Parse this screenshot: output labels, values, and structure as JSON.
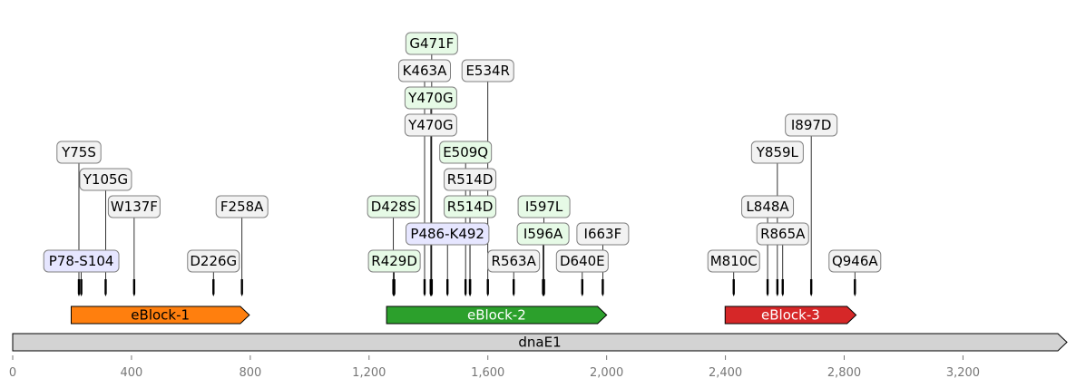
{
  "map": {
    "sequence": {
      "name": "dnaE1",
      "length": 3550
    },
    "axis": {
      "min": 0,
      "max": 3550,
      "ticks": [
        0,
        400,
        800,
        1200,
        1600,
        2000,
        2400,
        2800,
        3200
      ],
      "tick_labels": [
        "0",
        "400",
        "800",
        "1,200",
        "1,600",
        "2,000",
        "2,400",
        "2,800",
        "3,200"
      ]
    },
    "blocks": [
      {
        "name": "eBlock-1",
        "start": 197,
        "end": 797,
        "color": "#ff7f0e",
        "text_color": "#000000"
      },
      {
        "name": "eBlock-2",
        "start": 1259,
        "end": 2000,
        "color": "#2ca02c",
        "text_color": "#ffffff"
      },
      {
        "name": "eBlock-3",
        "start": 2399,
        "end": 2840,
        "color": "#d62728",
        "text_color": "#ffffff"
      }
    ],
    "features": [
      {
        "label": "P78-S104",
        "pos": 231,
        "level": 0,
        "kind": "range"
      },
      {
        "label": "Y75S",
        "pos": 223,
        "level": 4,
        "kind": "gray"
      },
      {
        "label": "Y105G",
        "pos": 313,
        "level": 3,
        "kind": "gray"
      },
      {
        "label": "W137F",
        "pos": 409,
        "level": 2,
        "kind": "gray"
      },
      {
        "label": "D226G",
        "pos": 676,
        "level": 0,
        "kind": "gray"
      },
      {
        "label": "F258A",
        "pos": 772,
        "level": 2,
        "kind": "gray"
      },
      {
        "label": "R429D",
        "pos": 1285,
        "level": 0,
        "kind": "green"
      },
      {
        "label": "D428S",
        "pos": 1282,
        "level": 2,
        "kind": "green"
      },
      {
        "label": "P486-K492",
        "pos": 1464,
        "level": 1,
        "kind": "range"
      },
      {
        "label": "Y470G",
        "pos": 1408,
        "level": 5,
        "kind": "gray"
      },
      {
        "label": "Y470G",
        "pos": 1408,
        "level": 6,
        "kind": "green"
      },
      {
        "label": "K463A",
        "pos": 1387,
        "level": 7,
        "kind": "gray"
      },
      {
        "label": "G471F",
        "pos": 1411,
        "level": 8,
        "kind": "green"
      },
      {
        "label": "E509Q",
        "pos": 1525,
        "level": 4,
        "kind": "green"
      },
      {
        "label": "R514D",
        "pos": 1540,
        "level": 3,
        "kind": "gray"
      },
      {
        "label": "R514D",
        "pos": 1540,
        "level": 2,
        "kind": "green"
      },
      {
        "label": "E534R",
        "pos": 1600,
        "level": 7,
        "kind": "gray"
      },
      {
        "label": "R563A",
        "pos": 1687,
        "level": 0,
        "kind": "gray"
      },
      {
        "label": "I597L",
        "pos": 1789,
        "level": 2,
        "kind": "green"
      },
      {
        "label": "I596A",
        "pos": 1786,
        "level": 1,
        "kind": "green"
      },
      {
        "label": "D640E",
        "pos": 1918,
        "level": 0,
        "kind": "gray"
      },
      {
        "label": "I663F",
        "pos": 1987,
        "level": 1,
        "kind": "gray"
      },
      {
        "label": "M810C",
        "pos": 2428,
        "level": 0,
        "kind": "gray"
      },
      {
        "label": "L848A",
        "pos": 2542,
        "level": 2,
        "kind": "gray"
      },
      {
        "label": "Y859L",
        "pos": 2575,
        "level": 4,
        "kind": "gray"
      },
      {
        "label": "R865A",
        "pos": 2593,
        "level": 1,
        "kind": "gray"
      },
      {
        "label": "I897D",
        "pos": 2689,
        "level": 5,
        "kind": "gray"
      },
      {
        "label": "Q946A",
        "pos": 2836,
        "level": 0,
        "kind": "gray"
      }
    ],
    "styles": {
      "gray": {
        "fill": "#f2f2f2",
        "stroke": "#808080"
      },
      "green": {
        "fill": "#e6fae6",
        "stroke": "#808080"
      },
      "range": {
        "fill": "#e6e6ff",
        "stroke": "#808080"
      },
      "track_fill": "#d3d3d3"
    }
  }
}
